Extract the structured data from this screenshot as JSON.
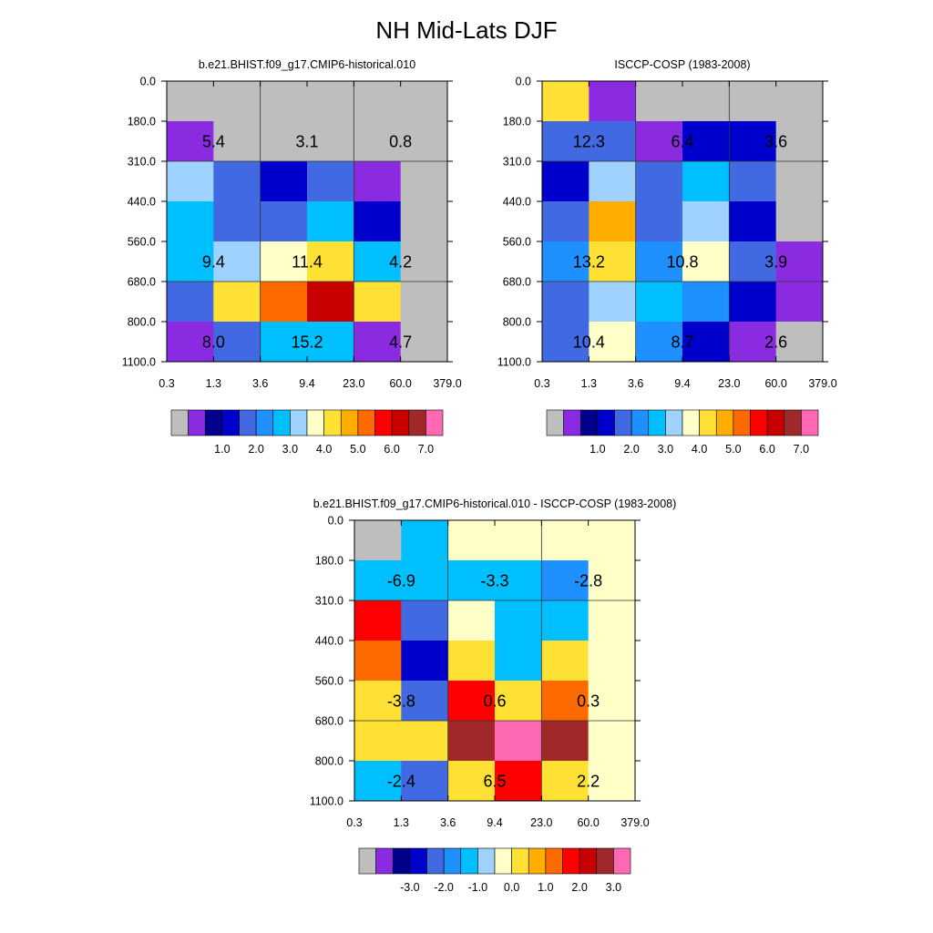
{
  "figure_title": "NH Mid-Lats DJF",
  "chart_data": [
    {
      "type": "heatmap",
      "title": "b.e21.BHIST.f09_g17.CMIP6-historical.010",
      "x_ticks": [
        "0.3",
        "1.3",
        "3.6",
        "9.4",
        "23.0",
        "60.0",
        "379.0"
      ],
      "y_ticks": [
        "0.0",
        "180.0",
        "310.0",
        "440.0",
        "560.0",
        "680.0",
        "800.0",
        "1100.0"
      ],
      "cells": [
        [
          "missing",
          "missing",
          "missing",
          "missing",
          "missing",
          "missing"
        ],
        [
          0.25,
          "missing",
          "missing",
          "missing",
          "missing",
          "missing"
        ],
        [
          3.25,
          1.75,
          1.25,
          1.75,
          0.25,
          "missing"
        ],
        [
          2.75,
          1.75,
          1.75,
          2.75,
          1.25,
          "missing"
        ],
        [
          2.75,
          3.25,
          3.75,
          4.25,
          2.75,
          "missing"
        ],
        [
          1.75,
          4.25,
          5.25,
          6.25,
          4.25,
          "missing"
        ],
        [
          0.25,
          1.75,
          2.75,
          2.75,
          0.25,
          "missing"
        ]
      ],
      "annotations": [
        {
          "row": 1,
          "col": 0.5,
          "text": "5.4"
        },
        {
          "row": 1,
          "col": 2.5,
          "text": "3.1"
        },
        {
          "row": 1,
          "col": 4.5,
          "text": "0.8"
        },
        {
          "row": 4,
          "col": 0.5,
          "text": "9.4"
        },
        {
          "row": 4,
          "col": 2.5,
          "text": "11.4"
        },
        {
          "row": 4,
          "col": 4.5,
          "text": "4.2"
        },
        {
          "row": 6,
          "col": 0.5,
          "text": "8.0"
        },
        {
          "row": 6,
          "col": 2.5,
          "text": "15.2"
        },
        {
          "row": 6,
          "col": 4.5,
          "text": "4.7"
        }
      ],
      "colorbar": {
        "colors": [
          "#bebebe",
          "#8a2be2",
          "#00008b",
          "#0000cd",
          "#4169e1",
          "#1e90ff",
          "#00bfff",
          "#a0d2ff",
          "#ffffc8",
          "#ffe135",
          "#ffae00",
          "#ff6a00",
          "#ff0000",
          "#c80000",
          "#a02828",
          "#ff69b4"
        ],
        "labels": [
          "1.0",
          "2.0",
          "3.0",
          "4.0",
          "5.0",
          "6.0",
          "7.0"
        ]
      }
    },
    {
      "type": "heatmap",
      "title": "ISCCP-COSP (1983-2008)",
      "x_ticks": [
        "0.3",
        "1.3",
        "3.6",
        "9.4",
        "23.0",
        "60.0",
        "379.0"
      ],
      "y_ticks": [
        "0.0",
        "180.0",
        "310.0",
        "440.0",
        "560.0",
        "680.0",
        "800.0",
        "1100.0"
      ],
      "cells": [
        [
          4.25,
          0.25,
          "missing",
          "missing",
          "missing",
          "missing"
        ],
        [
          1.75,
          1.75,
          0.25,
          1.25,
          1.25,
          "missing"
        ],
        [
          1.25,
          3.25,
          1.75,
          2.75,
          1.75,
          "missing"
        ],
        [
          1.75,
          4.75,
          1.75,
          3.25,
          1.25,
          "missing"
        ],
        [
          2.25,
          4.25,
          2.25,
          3.75,
          1.75,
          0.25
        ],
        [
          1.75,
          3.25,
          2.75,
          2.25,
          1.25,
          0.25
        ],
        [
          1.75,
          3.75,
          2.25,
          1.25,
          0.25,
          "missing"
        ]
      ],
      "annotations": [
        {
          "row": 1,
          "col": 0.5,
          "text": "12.3"
        },
        {
          "row": 1,
          "col": 2.5,
          "text": "6.4"
        },
        {
          "row": 1,
          "col": 4.5,
          "text": "3.6"
        },
        {
          "row": 4,
          "col": 0.5,
          "text": "13.2"
        },
        {
          "row": 4,
          "col": 2.5,
          "text": "10.8"
        },
        {
          "row": 4,
          "col": 4.5,
          "text": "3.9"
        },
        {
          "row": 6,
          "col": 0.5,
          "text": "10.4"
        },
        {
          "row": 6,
          "col": 2.5,
          "text": "8.7"
        },
        {
          "row": 6,
          "col": 4.5,
          "text": "2.6"
        }
      ],
      "colorbar": {
        "colors": [
          "#bebebe",
          "#8a2be2",
          "#00008b",
          "#0000cd",
          "#4169e1",
          "#1e90ff",
          "#00bfff",
          "#a0d2ff",
          "#ffffc8",
          "#ffe135",
          "#ffae00",
          "#ff6a00",
          "#ff0000",
          "#c80000",
          "#a02828",
          "#ff69b4"
        ],
        "labels": [
          "1.0",
          "2.0",
          "3.0",
          "4.0",
          "5.0",
          "6.0",
          "7.0"
        ]
      }
    },
    {
      "type": "heatmap",
      "title": "b.e21.BHIST.f09_g17.CMIP6-historical.010 - ISCCP-COSP (1983-2008)",
      "x_ticks": [
        "0.3",
        "1.3",
        "3.6",
        "9.4",
        "23.0",
        "60.0",
        "379.0"
      ],
      "y_ticks": [
        "0.0",
        "180.0",
        "310.0",
        "440.0",
        "560.0",
        "680.0",
        "800.0",
        "1100.0"
      ],
      "cells": [
        [
          "missing",
          -1.25,
          -0.25,
          -0.25,
          -0.25,
          -0.25
        ],
        [
          -1.25,
          -1.25,
          -1.25,
          -1.25,
          -1.75,
          -0.25
        ],
        [
          1.75,
          -2.25,
          -0.25,
          -1.25,
          -1.25,
          -0.25
        ],
        [
          1.25,
          -2.75,
          0.25,
          -1.25,
          0.25,
          -0.25
        ],
        [
          0.25,
          -2.25,
          1.75,
          0.25,
          1.25,
          -0.25
        ],
        [
          0.25,
          0.25,
          2.75,
          3.75,
          2.75,
          -0.25
        ],
        [
          -1.25,
          -2.25,
          0.25,
          1.75,
          0.25,
          -0.25
        ]
      ],
      "annotations": [
        {
          "row": 1,
          "col": 0.5,
          "text": "-6.9"
        },
        {
          "row": 1,
          "col": 2.5,
          "text": "-3.3"
        },
        {
          "row": 1,
          "col": 4.5,
          "text": "-2.8"
        },
        {
          "row": 4,
          "col": 0.5,
          "text": "-3.8"
        },
        {
          "row": 4,
          "col": 2.5,
          "text": "0.6"
        },
        {
          "row": 4,
          "col": 4.5,
          "text": "0.3"
        },
        {
          "row": 6,
          "col": 0.5,
          "text": "-2.4"
        },
        {
          "row": 6,
          "col": 2.5,
          "text": "6.5"
        },
        {
          "row": 6,
          "col": 4.5,
          "text": "2.2"
        }
      ],
      "colorbar": {
        "colors": [
          "#bebebe",
          "#8a2be2",
          "#00008b",
          "#0000cd",
          "#4169e1",
          "#1e90ff",
          "#00bfff",
          "#a0d2ff",
          "#ffffc8",
          "#ffe135",
          "#ffae00",
          "#ff6a00",
          "#ff0000",
          "#c80000",
          "#a02828",
          "#ff69b4"
        ],
        "labels": [
          "-3.0",
          "-2.0",
          "-1.0",
          "0.0",
          "1.0",
          "2.0",
          "3.0"
        ]
      }
    }
  ]
}
